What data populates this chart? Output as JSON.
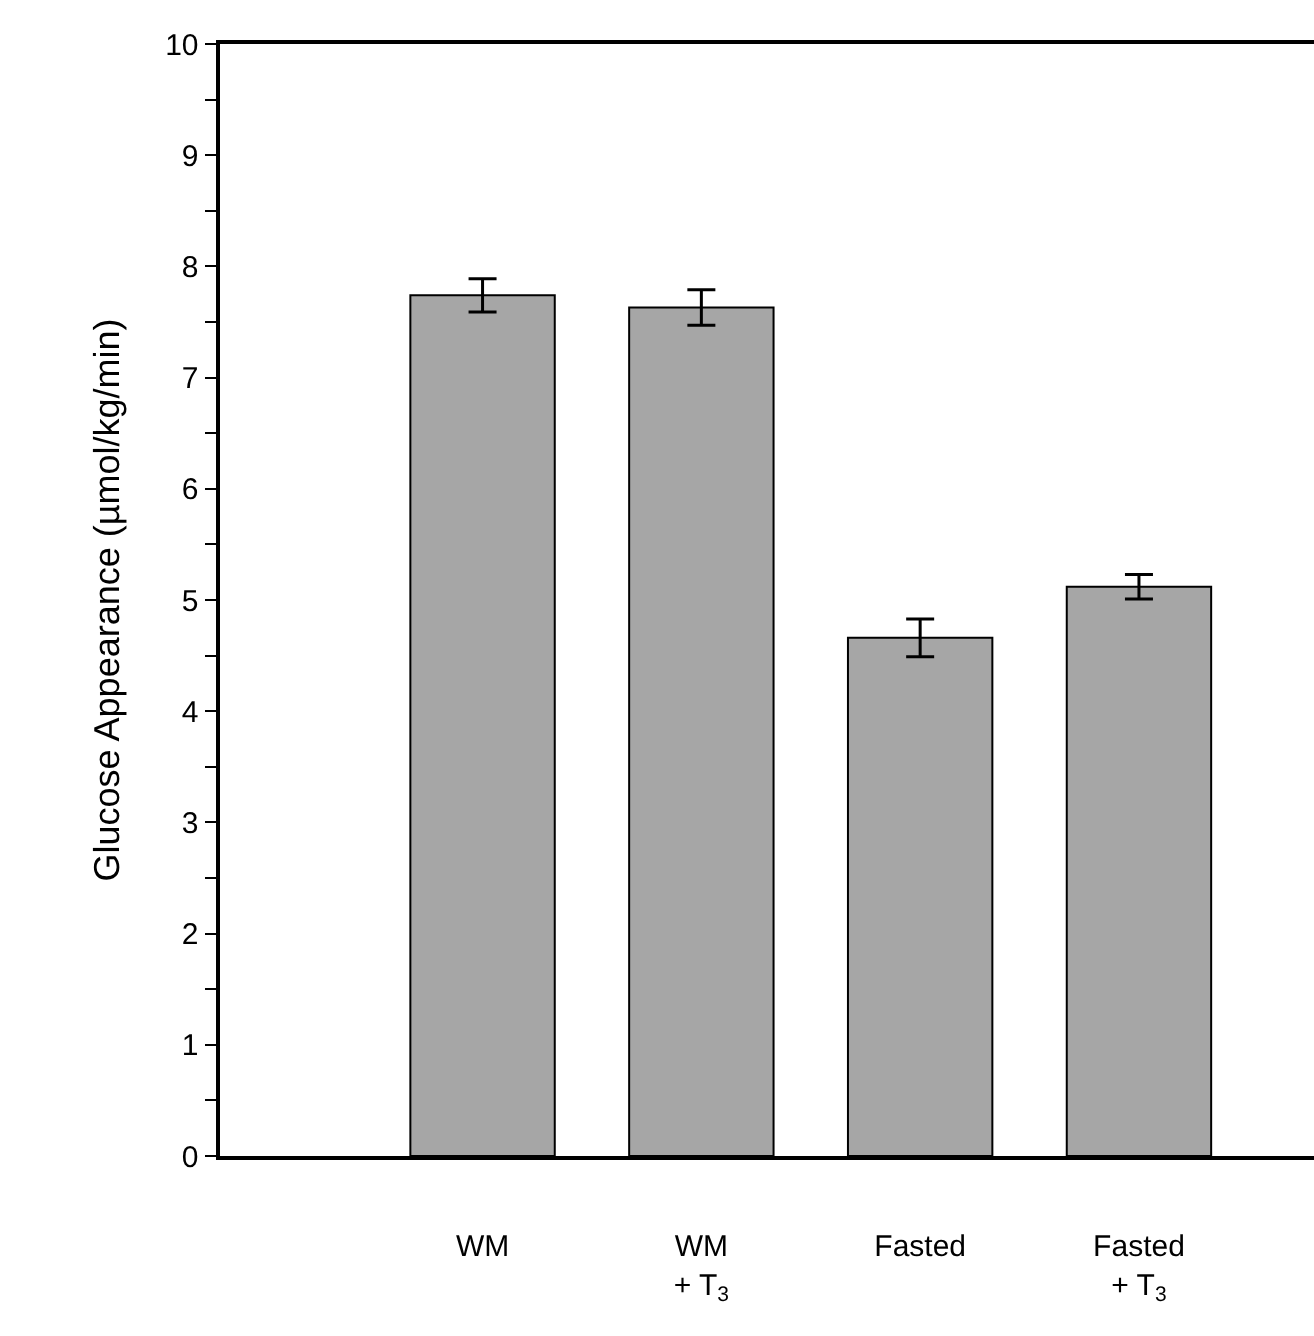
{
  "chart_data": {
    "type": "bar",
    "ylabel": "Glucose Appearance (µmol/kg/min)",
    "categories": [
      "WM",
      "WM\n+ T$_{3}$",
      "Fasted",
      "Fasted\n+ T$_{3}$"
    ],
    "values": [
      7.74,
      7.63,
      4.66,
      5.12
    ],
    "errors": [
      0.15,
      0.16,
      0.17,
      0.11
    ],
    "color": "#a6a6a6",
    "ylim": [
      0,
      10
    ],
    "yticks": [
      0,
      {
        "value": 0.5,
        "label": null
      },
      1,
      {
        "value": 1.5,
        "label": null
      },
      2,
      {
        "value": 2.5,
        "label": null
      },
      3,
      {
        "value": 3.5,
        "label": null
      },
      4,
      {
        "value": 4.5,
        "label": null
      },
      5,
      {
        "value": 5.5,
        "label": null
      },
      6,
      {
        "value": 6.5,
        "label": null
      },
      7,
      {
        "value": 7.5,
        "label": null
      },
      8,
      {
        "value": 8.5,
        "label": null
      },
      9,
      {
        "value": 9.5,
        "label": null
      },
      10
    ]
  }
}
